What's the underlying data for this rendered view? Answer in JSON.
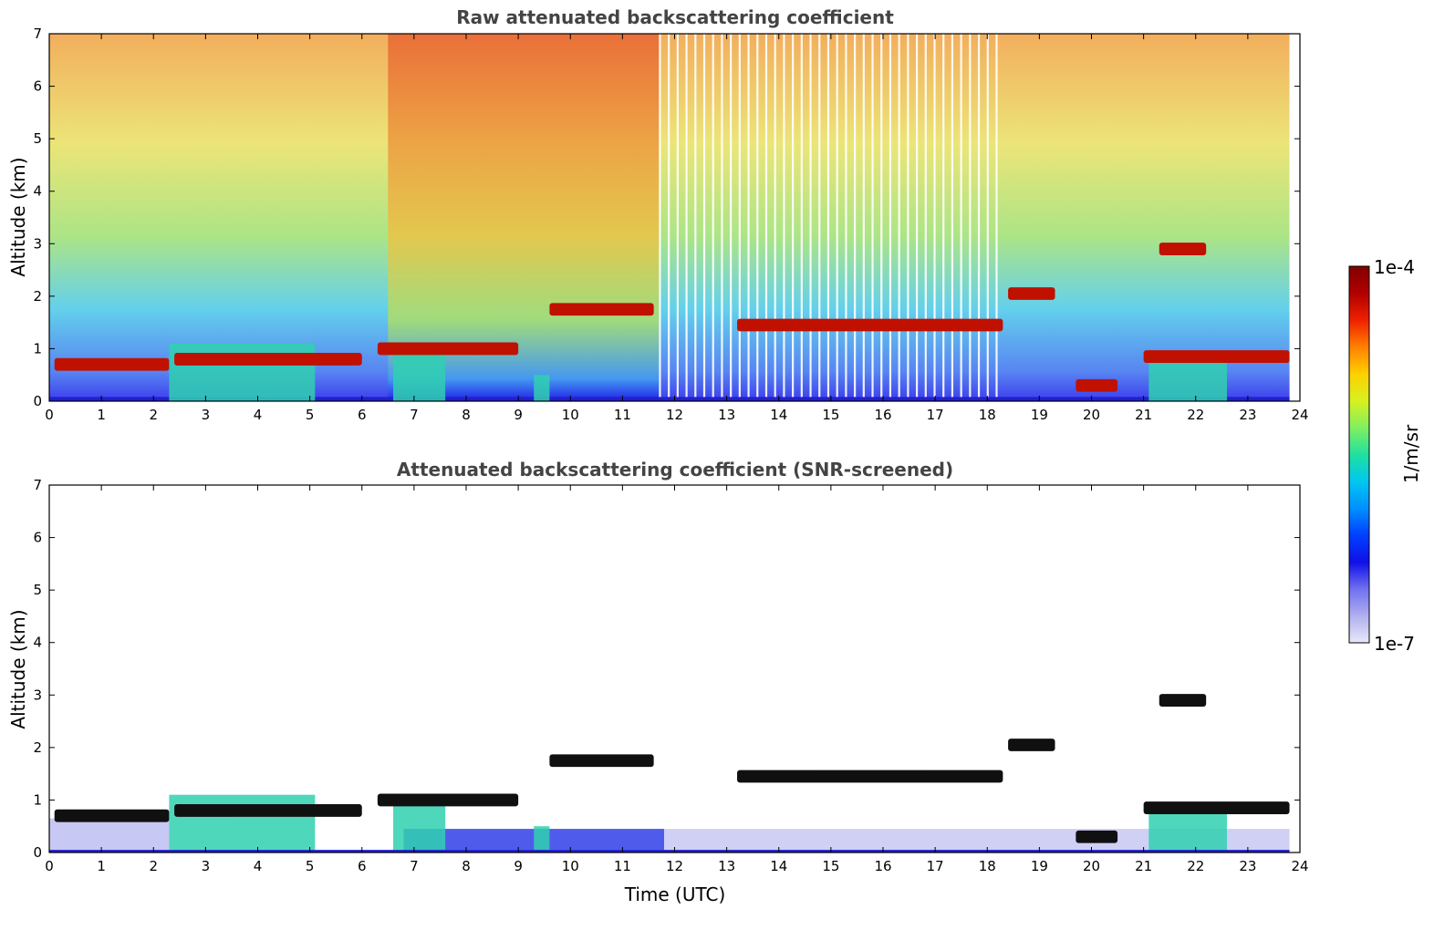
{
  "chart_data": [
    {
      "type": "heatmap",
      "title": "Raw attenuated backscattering coefficient",
      "xlabel": "",
      "ylabel": "Altitude (km)",
      "xlim": [
        0,
        24
      ],
      "ylim": [
        0,
        7
      ],
      "xticks": [
        "0",
        "1",
        "2",
        "3",
        "4",
        "5",
        "6",
        "7",
        "8",
        "9",
        "10",
        "11",
        "12",
        "13",
        "14",
        "15",
        "16",
        "17",
        "18",
        "19",
        "20",
        "21",
        "22",
        "23",
        "24"
      ],
      "yticks": [
        "0",
        "1",
        "2",
        "3",
        "4",
        "5",
        "6",
        "7"
      ],
      "layers": [
        {
          "start": 0.1,
          "end": 2.3,
          "alt_km": 0.7
        },
        {
          "start": 2.4,
          "end": 6.0,
          "alt_km": 0.8
        },
        {
          "start": 6.3,
          "end": 9.0,
          "alt_km": 1.0
        },
        {
          "start": 9.6,
          "end": 11.6,
          "alt_km": 1.75
        },
        {
          "start": 13.2,
          "end": 18.3,
          "alt_km": 1.45
        },
        {
          "start": 18.4,
          "end": 19.3,
          "alt_km": 2.05
        },
        {
          "start": 19.7,
          "end": 20.5,
          "alt_km": 0.3
        },
        {
          "start": 21.0,
          "end": 23.8,
          "alt_km": 0.85
        },
        {
          "start": 21.3,
          "end": 22.2,
          "alt_km": 2.9
        }
      ],
      "grid": false
    },
    {
      "type": "heatmap",
      "title": "Attenuated backscattering coefficient (SNR-screened)",
      "xlabel": "Time (UTC)",
      "ylabel": "Altitude (km)",
      "xlim": [
        0,
        24
      ],
      "ylim": [
        0,
        7
      ],
      "xticks": [
        "0",
        "1",
        "2",
        "3",
        "4",
        "5",
        "6",
        "7",
        "8",
        "9",
        "10",
        "11",
        "12",
        "13",
        "14",
        "15",
        "16",
        "17",
        "18",
        "19",
        "20",
        "21",
        "22",
        "23",
        "24"
      ],
      "yticks": [
        "0",
        "1",
        "2",
        "3",
        "4",
        "5",
        "6",
        "7"
      ],
      "grid": false
    }
  ],
  "colorbar": {
    "label": "1/m/sr",
    "max_label": "1e-4",
    "min_label": "1e-7",
    "colors": [
      "#e8e8f8",
      "#b0b0f0",
      "#7070f0",
      "#1010e8",
      "#0040ff",
      "#0090ff",
      "#00c8f0",
      "#20e0a0",
      "#80f060",
      "#d8f020",
      "#ffd000",
      "#ff8000",
      "#f02000",
      "#b00000",
      "#800000"
    ]
  }
}
